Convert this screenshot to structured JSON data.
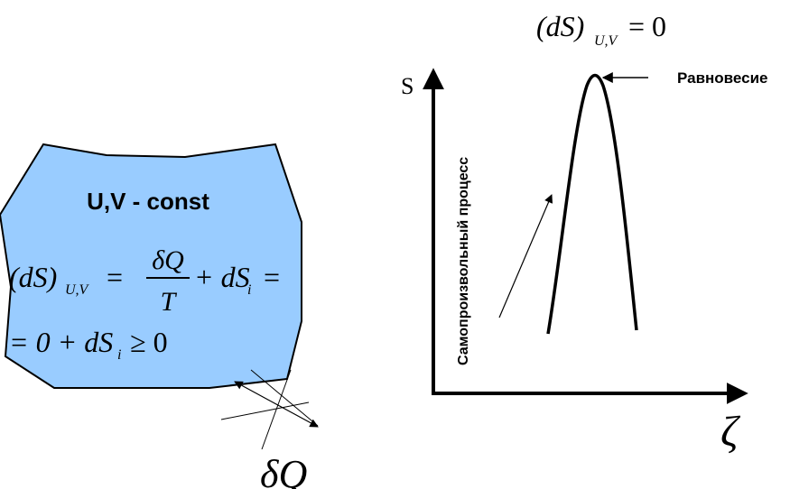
{
  "blob": {
    "title": "U,V - const",
    "eq_line1": {
      "lhs": "(dS)",
      "lhs_sub": "U,V",
      "eq": "=",
      "frac_num": "δQ",
      "frac_den": "T",
      "plus": "+ dS",
      "plus_sub": "i",
      "eq2": "="
    },
    "eq_line2": {
      "text": "= 0 + dS",
      "sub": "i",
      "rest": "≥ 0"
    },
    "fill_color": "#99ccff"
  },
  "heat_label": "δQ",
  "top_equation": {
    "lhs": "(dS)",
    "sub": "U,V",
    "rhs": "= 0"
  },
  "chart_data": {
    "type": "line",
    "y_axis_label": "S",
    "x_axis_label": "ζ",
    "equilibrium_label": "Равновесие",
    "process_label": "Самопроизвольный процесс"
  }
}
